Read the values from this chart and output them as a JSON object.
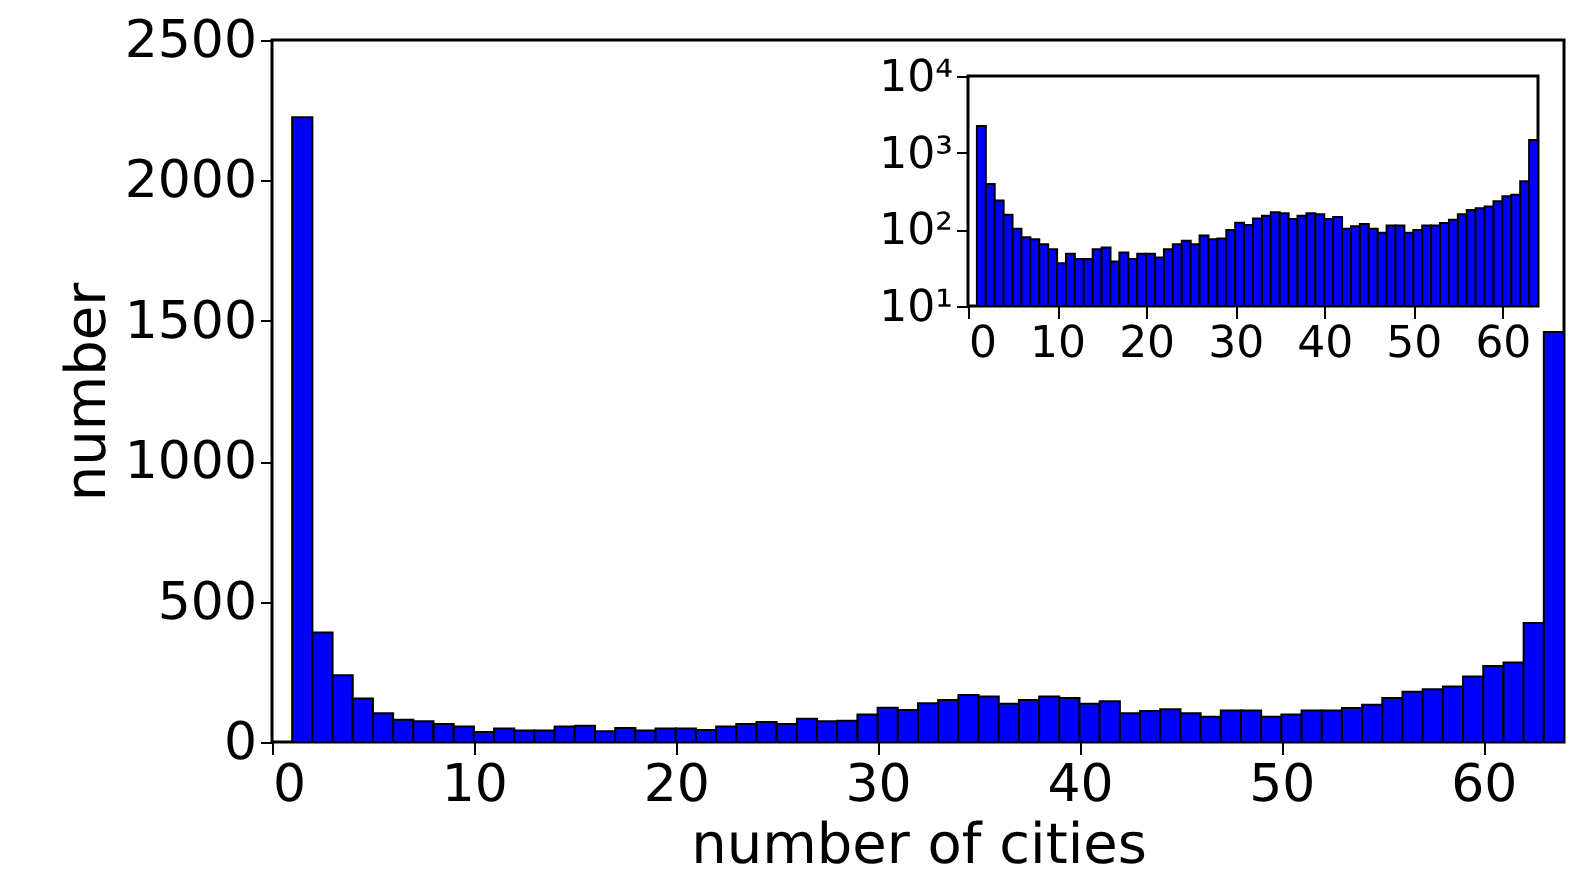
{
  "chart_data": [
    {
      "type": "histogram",
      "xlabel": "number of cities",
      "ylabel": "number",
      "color": "#0000ff",
      "bins": [
        1,
        2,
        3,
        4,
        5,
        6,
        7,
        8,
        9,
        10,
        11,
        12,
        13,
        14,
        15,
        16,
        17,
        18,
        19,
        20,
        21,
        22,
        23,
        24,
        25,
        26,
        27,
        28,
        29,
        30,
        31,
        32,
        33,
        34,
        35,
        36,
        37,
        38,
        39,
        40,
        41,
        42,
        43,
        44,
        45,
        46,
        47,
        48,
        49,
        50,
        51,
        52,
        53,
        54,
        55,
        56,
        57,
        58,
        59,
        60,
        61,
        62,
        63,
        64
      ],
      "values": [
        2225,
        390,
        238,
        155,
        102,
        79,
        74,
        64,
        55,
        36,
        48,
        41,
        41,
        55,
        58,
        38,
        50,
        41,
        48,
        48,
        43,
        55,
        64,
        71,
        64,
        83,
        74,
        76,
        98,
        122,
        114,
        138,
        150,
        167,
        162,
        136,
        150,
        162,
        157,
        136,
        145,
        102,
        110,
        117,
        102,
        90,
        112,
        112,
        90,
        98,
        112,
        112,
        121,
        133,
        157,
        179,
        188,
        198,
        233,
        271,
        283,
        424,
        1460
      ],
      "xlim": [
        0,
        64
      ],
      "ylim": [
        0,
        2500
      ],
      "xticks": [
        0,
        10,
        20,
        30,
        40,
        50,
        60
      ],
      "yticks": [
        0,
        500,
        1000,
        1500,
        2000,
        2500
      ]
    },
    {
      "type": "histogram",
      "color": "#0000ff",
      "log": true,
      "bins": [
        1,
        2,
        3,
        4,
        5,
        6,
        7,
        8,
        9,
        10,
        11,
        12,
        13,
        14,
        15,
        16,
        17,
        18,
        19,
        20,
        21,
        22,
        23,
        24,
        25,
        26,
        27,
        28,
        29,
        30,
        31,
        32,
        33,
        34,
        35,
        36,
        37,
        38,
        39,
        40,
        41,
        42,
        43,
        44,
        45,
        46,
        47,
        48,
        49,
        50,
        51,
        52,
        53,
        54,
        55,
        56,
        57,
        58,
        59,
        60,
        61,
        62,
        63,
        64
      ],
      "values": [
        2225,
        390,
        238,
        155,
        102,
        79,
        74,
        64,
        55,
        36,
        48,
        41,
        41,
        55,
        58,
        38,
        50,
        41,
        48,
        48,
        43,
        55,
        64,
        71,
        64,
        83,
        74,
        76,
        98,
        122,
        114,
        138,
        150,
        167,
        162,
        136,
        150,
        162,
        157,
        136,
        145,
        102,
        110,
        117,
        102,
        90,
        112,
        112,
        90,
        98,
        112,
        112,
        121,
        133,
        157,
        179,
        188,
        198,
        233,
        271,
        283,
        424,
        1460
      ],
      "xlim": [
        0,
        64
      ],
      "ylim": [
        10,
        10000
      ],
      "xticks": [
        0,
        10,
        20,
        30,
        40,
        50,
        60
      ],
      "yticks": [
        {
          "value": 10,
          "label": "10¹"
        },
        {
          "value": 100,
          "label": "10²"
        },
        {
          "value": 1000,
          "label": "10³"
        },
        {
          "value": 10000,
          "label": "10⁴"
        }
      ]
    }
  ]
}
